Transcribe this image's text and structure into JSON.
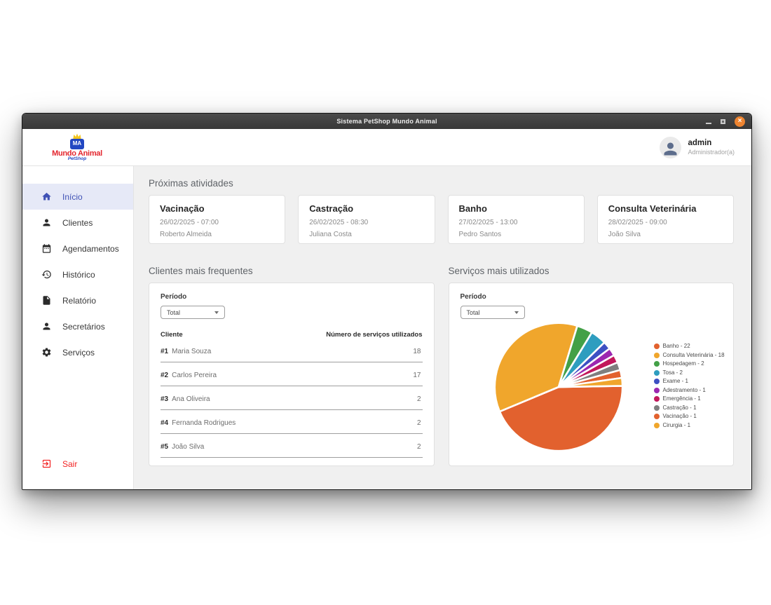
{
  "window": {
    "title": "Sistema PetShop Mundo Animal"
  },
  "header": {
    "logo": {
      "monogram": "MA",
      "name": "Mundo Animal",
      "subtitle": "PetShop"
    },
    "user": {
      "name": "admin",
      "role": "Administrador(a)"
    }
  },
  "sidebar": {
    "items": [
      {
        "label": "Início",
        "icon": "home-icon",
        "active": true
      },
      {
        "label": "Clientes",
        "icon": "person-icon",
        "active": false
      },
      {
        "label": "Agendamentos",
        "icon": "calendar-icon",
        "active": false
      },
      {
        "label": "Histórico",
        "icon": "history-icon",
        "active": false
      },
      {
        "label": "Relatório",
        "icon": "file-icon",
        "active": false
      },
      {
        "label": "Secretários",
        "icon": "person-icon",
        "active": false
      },
      {
        "label": "Serviços",
        "icon": "gear-icon",
        "active": false
      }
    ],
    "logout": {
      "label": "Sair",
      "icon": "logout-icon"
    }
  },
  "main": {
    "activities": {
      "title": "Próximas atividades",
      "cards": [
        {
          "title": "Vacinação",
          "datetime": "26/02/2025 - 07:00",
          "client": "Roberto Almeida"
        },
        {
          "title": "Castração",
          "datetime": "26/02/2025 - 08:30",
          "client": "Juliana Costa"
        },
        {
          "title": "Banho",
          "datetime": "27/02/2025 - 13:00",
          "client": "Pedro Santos"
        },
        {
          "title": "Consulta Veterinária",
          "datetime": "28/02/2025 - 09:00",
          "client": "João Silva"
        }
      ]
    },
    "frequent_clients": {
      "title": "Clientes mais frequentes",
      "period_label": "Período",
      "period_value": "Total",
      "columns": {
        "client": "Cliente",
        "count": "Número de serviços utilizados"
      },
      "rows": [
        {
          "rank": "#1",
          "name": "Maria Souza",
          "count": "18"
        },
        {
          "rank": "#2",
          "name": "Carlos Pereira",
          "count": "17"
        },
        {
          "rank": "#3",
          "name": "Ana Oliveira",
          "count": "2"
        },
        {
          "rank": "#4",
          "name": "Fernanda Rodrigues",
          "count": "2"
        },
        {
          "rank": "#5",
          "name": "João Silva",
          "count": "2"
        }
      ]
    },
    "top_services": {
      "title": "Serviços mais utilizados",
      "period_label": "Período",
      "period_value": "Total"
    }
  },
  "chart_data": {
    "type": "pie",
    "title": "Serviços mais utilizados",
    "labels": [
      "Banho",
      "Consulta Veterinária",
      "Hospedagem",
      "Tosa",
      "Exame",
      "Adestramento",
      "Emergência",
      "Castração",
      "Vacinação",
      "Cirurgia"
    ],
    "values": [
      22,
      18,
      2,
      2,
      1,
      1,
      1,
      1,
      1,
      1
    ],
    "total": 50,
    "colors": [
      "#E2612E",
      "#F0A62C",
      "#43A047",
      "#2E9DBF",
      "#3D50C3",
      "#9C27B0",
      "#C2185B",
      "#7F7F7F",
      "#E2612E",
      "#F0A62C"
    ],
    "legend_labels": [
      "Banho - 22",
      "Consulta Veterinária - 18",
      "Hospedagem - 2",
      "Tosa - 2",
      "Exame - 1",
      "Adestramento - 1",
      "Emergência - 1",
      "Castração - 1",
      "Vacinação - 1",
      "Cirurgia - 1"
    ],
    "legend_position": "right",
    "start_angle_deg": 89,
    "slice_border_color": "#ffffff"
  },
  "colors": {
    "accent": "#3f51b5",
    "active_bg": "#e6e9f7",
    "logout_red": "#f22424",
    "main_bg": "#f0f0f0",
    "titlebar": "#3c3c3c",
    "close_button": "#ee8430"
  }
}
